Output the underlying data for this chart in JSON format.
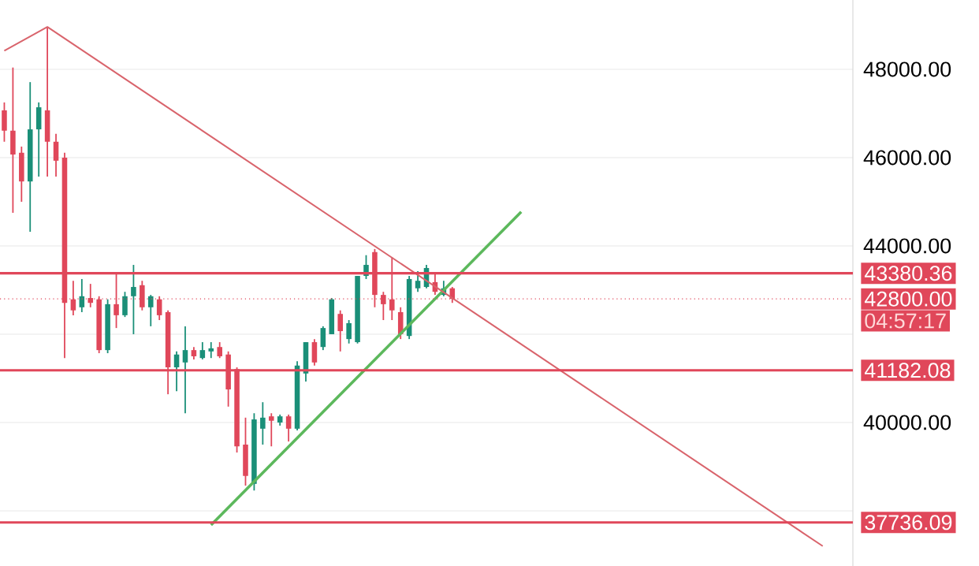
{
  "chart_data": {
    "type": "candlestick",
    "categories": [
      null,
      null,
      null,
      null,
      null,
      null,
      null,
      null,
      null,
      null,
      null,
      null,
      null,
      null,
      null,
      null,
      null,
      null,
      null,
      null,
      null,
      null,
      null,
      null,
      null,
      null,
      null,
      null,
      null,
      null,
      null,
      null,
      null,
      null,
      null,
      null,
      null,
      null,
      null,
      null,
      null,
      null,
      null,
      null,
      null,
      null,
      null,
      null,
      null,
      null,
      null,
      null,
      null,
      null,
      null,
      null,
      null,
      null,
      null,
      null,
      null,
      null,
      null,
      null,
      null,
      null,
      null,
      null,
      null,
      null,
      null,
      null,
      null,
      null,
      null,
      null,
      null,
      null,
      null,
      null,
      null,
      null,
      null,
      null,
      null,
      null,
      null,
      null,
      null,
      null,
      null,
      null,
      null,
      null,
      null,
      null,
      null,
      null,
      null
    ],
    "ohlc": [
      [
        47070,
        47250,
        46360,
        46610
      ],
      [
        46610,
        48040,
        44750,
        46070
      ],
      [
        46110,
        46250,
        45000,
        45460
      ],
      [
        45460,
        47710,
        44320,
        46640
      ],
      [
        46640,
        47250,
        45570,
        47140
      ],
      [
        47070,
        48960,
        45570,
        46360
      ],
      [
        46360,
        46540,
        45570,
        45930
      ],
      [
        46000,
        46110,
        41460,
        42710
      ],
      [
        42790,
        43210,
        42430,
        42540
      ],
      [
        42610,
        43250,
        42500,
        42860
      ],
      [
        42820,
        43140,
        42610,
        42710
      ],
      [
        42790,
        42860,
        41570,
        41640
      ],
      [
        41640,
        42790,
        41570,
        42680
      ],
      [
        42680,
        43390,
        42140,
        42430
      ],
      [
        42430,
        42960,
        42390,
        42860
      ],
      [
        42860,
        43570,
        42000,
        43070
      ],
      [
        43110,
        43210,
        42540,
        42610
      ],
      [
        42610,
        42890,
        42180,
        42860
      ],
      [
        42790,
        42860,
        42320,
        42430
      ],
      [
        42500,
        42540,
        40640,
        41250
      ],
      [
        41250,
        41610,
        40710,
        41540
      ],
      [
        41360,
        42180,
        40210,
        41640
      ],
      [
        41640,
        41710,
        41430,
        41500
      ],
      [
        41460,
        41820,
        41430,
        41640
      ],
      [
        41610,
        41820,
        41460,
        41680
      ],
      [
        41710,
        41820,
        41460,
        41500
      ],
      [
        41540,
        41610,
        40360,
        40750
      ],
      [
        41210,
        41250,
        39320,
        39460
      ],
      [
        39500,
        40110,
        38570,
        38790
      ],
      [
        38610,
        40210,
        38460,
        40070
      ],
      [
        39860,
        40460,
        39500,
        40110
      ],
      [
        40140,
        40210,
        39460,
        40040
      ],
      [
        40000,
        40180,
        39930,
        40140
      ],
      [
        40140,
        40180,
        39570,
        39860
      ],
      [
        39860,
        41390,
        39820,
        41290
      ],
      [
        41110,
        41820,
        40930,
        41820
      ],
      [
        41820,
        41890,
        41290,
        41360
      ],
      [
        41710,
        42180,
        41640,
        42140
      ],
      [
        42000,
        42820,
        42000,
        42790
      ],
      [
        42460,
        42540,
        41610,
        42070
      ],
      [
        41890,
        42320,
        41790,
        42250
      ],
      [
        41820,
        43320,
        41790,
        43320
      ],
      [
        43320,
        43790,
        43250,
        43570
      ],
      [
        43860,
        43930,
        42610,
        42890
      ],
      [
        42890,
        42960,
        42320,
        42680
      ],
      [
        42790,
        43750,
        42320,
        42540
      ],
      [
        42500,
        42610,
        41890,
        42000
      ],
      [
        41960,
        43320,
        41890,
        43250
      ],
      [
        43040,
        43430,
        42960,
        43210
      ],
      [
        43070,
        43570,
        43040,
        43500
      ],
      [
        43180,
        43390,
        42890,
        42960
      ],
      [
        42890,
        43210,
        42860,
        43040
      ],
      [
        43040,
        43070,
        42710,
        42800
      ],
      null,
      null,
      null,
      null,
      null,
      null,
      null,
      null,
      null,
      null,
      null,
      null,
      null,
      null,
      null,
      null,
      null,
      null,
      null,
      null,
      null,
      null,
      null,
      null,
      null,
      null,
      null,
      null,
      null,
      null,
      null,
      null,
      null,
      null,
      null,
      null,
      null,
      null,
      null,
      null,
      null,
      null,
      null,
      null,
      null,
      null
    ],
    "colors": [
      "#e0475a",
      "#e0475a",
      "#e0475a",
      "#1a8f78",
      "#1a8f78",
      "#e0475a",
      "#e0475a",
      "#e0475a",
      "#e0475a",
      "#1a8f78",
      "#e0475a",
      "#e0475a",
      "#1a8f78",
      "#e0475a",
      "#1a8f78",
      "#1a8f78",
      "#e0475a",
      "#1a8f78",
      "#e0475a",
      "#e0475a",
      "#1a8f78",
      "#1a8f78",
      "#e0475a",
      "#1a8f78",
      "#1a8f78",
      "#e0475a",
      "#e0475a",
      "#e0475a",
      "#e0475a",
      "#1a8f78",
      "#1a8f78",
      "#e0475a",
      "#1a8f78",
      "#e0475a",
      "#1a8f78",
      "#1a8f78",
      "#e0475a",
      "#1a8f78",
      "#1a8f78",
      "#e0475a",
      "#1a8f78",
      "#1a8f78",
      "#1a8f78",
      "#e0475a",
      "#e0475a",
      "#e0475a",
      "#e0475a",
      "#1a8f78",
      "#1a8f78",
      "#1a8f78",
      "#e0475a",
      "#1a8f78",
      "#e0475a",
      null,
      null,
      null,
      null,
      null,
      null,
      null,
      null,
      null,
      null,
      null,
      null,
      null,
      null,
      null,
      null,
      null,
      null,
      null,
      null,
      null,
      null,
      null,
      null,
      null,
      null,
      null,
      null,
      null,
      null,
      null,
      null,
      null,
      null,
      null,
      null,
      null,
      null,
      null,
      null,
      null,
      null,
      null,
      null,
      null,
      null
    ],
    "series": [
      {
        "type": "line",
        "color": "#5cb85c",
        "values": [
          null,
          null,
          null,
          null,
          null,
          null,
          null,
          null,
          null,
          null,
          null,
          null,
          null,
          null,
          null,
          null,
          null,
          null,
          null,
          null,
          null,
          null,
          null,
          null,
          37680,
          null,
          null,
          null,
          null,
          null,
          null,
          null,
          null,
          null,
          null,
          null,
          null,
          null,
          null,
          null,
          null,
          null,
          null,
          null,
          null,
          null,
          null,
          null,
          null,
          null,
          null,
          null,
          null,
          null,
          null,
          null,
          null,
          null,
          null,
          null,
          44770,
          null,
          null,
          null,
          null,
          null,
          null,
          null,
          null,
          null,
          null,
          null,
          null,
          null,
          null,
          null,
          null,
          null,
          null,
          null,
          null,
          null,
          null,
          null,
          null,
          null,
          null,
          null,
          null,
          null,
          null,
          null,
          null,
          null,
          null,
          null,
          null,
          null,
          null
        ]
      },
      {
        "type": "line",
        "color": "#d9646c",
        "values": [
          48420,
          null,
          null,
          null,
          null,
          48960,
          null,
          null,
          null,
          null,
          null,
          null,
          null,
          null,
          null,
          null,
          null,
          null,
          null,
          null,
          null,
          null,
          null,
          null,
          null,
          null,
          null,
          null,
          null,
          null,
          null,
          null,
          null,
          null,
          null,
          null,
          null,
          null,
          null,
          null,
          null,
          null,
          null,
          null,
          null,
          null,
          null,
          null,
          null,
          null,
          null,
          null,
          null,
          null,
          null,
          null,
          null,
          null,
          null,
          null,
          null,
          null,
          null,
          null,
          null,
          null,
          null,
          null,
          null,
          null,
          null,
          null,
          null,
          null,
          null,
          null,
          null,
          null,
          null,
          null,
          null,
          null,
          null,
          null,
          null,
          null,
          null,
          null,
          null,
          null,
          null,
          null,
          null,
          null,
          null,
          37200,
          null,
          null,
          null
        ]
      }
    ],
    "ylim": [
      36750,
      49570
    ],
    "yticks": [
      {
        "value": 38000,
        "label": null
      },
      {
        "value": 40000,
        "label": "40000.00"
      },
      {
        "value": 42000,
        "label": null
      },
      {
        "value": 44000,
        "label": "44000.00"
      },
      {
        "value": 46000,
        "label": "46000.00"
      },
      {
        "value": 48000,
        "label": "48000.00"
      }
    ],
    "tick_labels": "y",
    "grid": "y",
    "ref_lines": [
      {
        "axis": "y",
        "value": 43380.36,
        "label": "43380.36",
        "color": "#e0475a",
        "line_style": "solid"
      },
      {
        "axis": "y",
        "value": 42800,
        "label": "42800.00",
        "color": "#e0475a",
        "line_style": "dotted"
      },
      {
        "axis": "y",
        "value": 41182.08,
        "label": "41182.08",
        "color": "#e0475a",
        "line_style": "solid"
      },
      {
        "axis": "y",
        "value": 37736.09,
        "label": "37736.09",
        "color": "#e0475a",
        "line_style": "solid"
      }
    ],
    "annotations": [
      "04:57:17"
    ]
  }
}
